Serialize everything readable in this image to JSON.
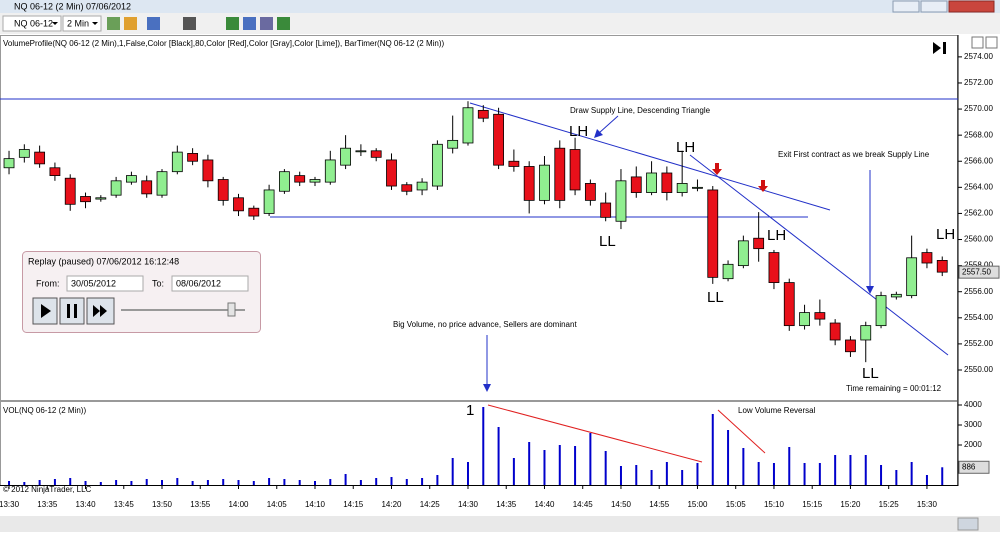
{
  "window": {
    "title": "NQ 06-12 (2 Min)  07/06/2012"
  },
  "toolbar": {
    "instrument": "NQ 06-12",
    "interval": "2 Min"
  },
  "replay": {
    "title": "Replay (paused) 07/06/2012 16:12:48",
    "from_label": "From:",
    "from": "30/05/2012",
    "to_label": "To:",
    "to": "08/06/2012"
  },
  "chart_data": {
    "type": "candlestick",
    "indicator_label": "VolumeProfile(NQ 06-12 (2 Min),1,False,Color [Black],80,Color [Red],Color [Gray],Color [Lime]), BarTimer(NQ 06-12 (2 Min))",
    "open": [
      2565.5,
      2566.3,
      2566.7,
      2565.5,
      2564.7,
      2563.3,
      2563.1,
      2563.4,
      2564.4,
      2564.5,
      2563.4,
      2565.2,
      2566.6,
      2566.1,
      2564.6,
      2563.2,
      2562.4,
      2562.0,
      2563.7,
      2564.9,
      2564.4,
      2564.4,
      2565.7,
      2566.8,
      2566.8,
      2566.1,
      2564.2,
      2563.8,
      2564.1,
      2567.0,
      2567.4,
      2569.9,
      2569.6,
      2566.0,
      2565.6,
      2563.0,
      2567.0,
      2566.9,
      2564.3,
      2562.8,
      2561.4,
      2564.8,
      2563.6,
      2565.1,
      2563.6,
      2564.0,
      2563.8,
      2557.0,
      2558.0,
      2560.1,
      2559.0,
      2556.7,
      2553.4,
      2554.4,
      2553.6,
      2552.3,
      2552.3,
      2553.4,
      2555.6,
      2555.7,
      2559.0,
      2558.4
    ],
    "high": [
      2566.8,
      2567.3,
      2567.2,
      2565.9,
      2565.0,
      2563.6,
      2563.4,
      2564.8,
      2565.2,
      2564.9,
      2565.4,
      2567.2,
      2567.0,
      2566.5,
      2564.8,
      2563.5,
      2562.6,
      2564.2,
      2565.4,
      2565.2,
      2564.8,
      2566.8,
      2568.0,
      2567.3,
      2567.0,
      2566.6,
      2564.4,
      2564.7,
      2567.6,
      2569.5,
      2570.6,
      2570.3,
      2570.1,
      2566.9,
      2566.0,
      2566.4,
      2567.6,
      2567.8,
      2564.6,
      2563.6,
      2565.4,
      2565.6,
      2566.0,
      2565.6,
      2566.8,
      2564.6,
      2564.1,
      2558.4,
      2560.3,
      2562.1,
      2559.2,
      2557.0,
      2555.0,
      2555.4,
      2553.9,
      2552.6,
      2553.7,
      2556.0,
      2556.0,
      2560.3,
      2559.3,
      2558.7
    ],
    "low": [
      2565.0,
      2565.9,
      2565.5,
      2564.5,
      2562.2,
      2562.4,
      2562.9,
      2563.2,
      2564.2,
      2563.2,
      2563.2,
      2565.0,
      2565.7,
      2564.0,
      2562.6,
      2561.8,
      2561.5,
      2561.8,
      2563.5,
      2564.1,
      2564.1,
      2564.2,
      2565.4,
      2566.4,
      2566.0,
      2563.8,
      2563.4,
      2563.4,
      2563.8,
      2566.6,
      2567.2,
      2569.0,
      2565.4,
      2565.2,
      2562.0,
      2562.7,
      2562.4,
      2563.4,
      2562.6,
      2561.4,
      2560.8,
      2563.2,
      2563.4,
      2563.0,
      2563.3,
      2563.7,
      2556.6,
      2556.8,
      2557.8,
      2558.3,
      2556.2,
      2553.0,
      2553.1,
      2553.4,
      2551.9,
      2551.0,
      2550.6,
      2553.2,
      2555.4,
      2555.5,
      2557.8,
      2557.2
    ],
    "close": [
      2566.2,
      2566.9,
      2565.8,
      2564.9,
      2562.7,
      2562.9,
      2563.2,
      2564.5,
      2564.9,
      2563.5,
      2565.2,
      2566.7,
      2566.0,
      2564.5,
      2563.0,
      2562.2,
      2561.8,
      2563.8,
      2565.2,
      2564.4,
      2564.6,
      2566.1,
      2567.0,
      2566.8,
      2566.3,
      2564.1,
      2563.7,
      2564.4,
      2567.3,
      2567.6,
      2570.1,
      2569.3,
      2565.7,
      2565.6,
      2563.0,
      2565.7,
      2563.0,
      2563.8,
      2563.0,
      2561.7,
      2564.5,
      2563.6,
      2565.1,
      2563.6,
      2564.3,
      2564.0,
      2557.1,
      2558.1,
      2559.9,
      2559.3,
      2556.7,
      2553.4,
      2554.4,
      2553.9,
      2552.3,
      2551.4,
      2553.4,
      2555.7,
      2555.8,
      2558.6,
      2558.2,
      2557.5
    ],
    "up_color": "#90ee90",
    "down_color": "#e8101a",
    "ylim": [
      2547.7,
      2575.6
    ],
    "yticks": [
      {
        "value": 2550,
        "label": "2550.00"
      },
      {
        "value": 2552,
        "label": "2552.00"
      },
      {
        "value": 2554,
        "label": "2554.00"
      },
      {
        "value": 2556,
        "label": "2556.00"
      },
      {
        "value": 2558,
        "label": "2558.00"
      },
      {
        "value": 2560,
        "label": "2560.00"
      },
      {
        "value": 2562,
        "label": "2562.00"
      },
      {
        "value": 2564,
        "label": "2564.00"
      },
      {
        "value": 2566,
        "label": "2566.00"
      },
      {
        "value": 2568,
        "label": "2568.00"
      },
      {
        "value": 2570,
        "label": "2570.00"
      },
      {
        "value": 2572,
        "label": "2572.00"
      },
      {
        "value": 2574,
        "label": "2574.00"
      }
    ],
    "grid": false,
    "last_price": {
      "value": 2557.5,
      "label": "2557.50"
    },
    "xlim": [
      -0.59,
      62.03
    ],
    "xticks": [
      {
        "value": 0,
        "label": "13:30"
      },
      {
        "value": 2.5,
        "label": "13:35"
      },
      {
        "value": 5,
        "label": "13:40"
      },
      {
        "value": 7.5,
        "label": "13:45"
      },
      {
        "value": 10,
        "label": "13:50"
      },
      {
        "value": 12.5,
        "label": "13:55"
      },
      {
        "value": 15,
        "label": "14:00"
      },
      {
        "value": 17.5,
        "label": "14:05"
      },
      {
        "value": 20,
        "label": "14:10"
      },
      {
        "value": 22.5,
        "label": "14:15"
      },
      {
        "value": 25,
        "label": "14:20"
      },
      {
        "value": 27.5,
        "label": "14:25"
      },
      {
        "value": 30,
        "label": "14:30"
      },
      {
        "value": 32.5,
        "label": "14:35"
      },
      {
        "value": 35,
        "label": "14:40"
      },
      {
        "value": 37.5,
        "label": "14:45"
      },
      {
        "value": 40,
        "label": "14:50"
      },
      {
        "value": 42.5,
        "label": "14:55"
      },
      {
        "value": 45,
        "label": "15:00"
      },
      {
        "value": 47.5,
        "label": "15:05"
      },
      {
        "value": 50,
        "label": "15:10"
      },
      {
        "value": 52.5,
        "label": "15:15"
      },
      {
        "value": 55,
        "label": "15:20"
      },
      {
        "value": 57.5,
        "label": "15:25"
      },
      {
        "value": 60,
        "label": "15:30"
      }
    ],
    "annotations": [
      "Draw Supply Line, Descending Triangle",
      "LH",
      "LH",
      "LH",
      "LH",
      "LL",
      "LL",
      "LL",
      "Exit First contract as we break Supply Line",
      "Big Volume, no price advance, Sellers are dominant",
      "Time remaining = 00:01:12"
    ],
    "volume": {
      "label": "VOL(NQ 06-12 (2 Min))",
      "values": [
        200,
        150,
        250,
        300,
        350,
        200,
        150,
        250,
        200,
        300,
        250,
        350,
        200,
        250,
        300,
        250,
        200,
        350,
        300,
        250,
        200,
        300,
        550,
        250,
        350,
        400,
        300,
        350,
        500,
        1350,
        1150,
        3900,
        2900,
        1350,
        2150,
        1750,
        2000,
        1950,
        2600,
        1700,
        950,
        1000,
        750,
        1150,
        750,
        1100,
        3550,
        2750,
        1850,
        1150,
        1100,
        1900,
        1100,
        1100,
        1500,
        1500,
        1500,
        1000,
        750,
        1150,
        500,
        886
      ],
      "color": "#0000cc",
      "ylim": [
        0,
        4200
      ],
      "yticks": [
        1000,
        2000,
        3000,
        4000
      ],
      "last": 886,
      "annotations": [
        "1",
        "Low Volume Reversal"
      ]
    },
    "copyright": "© 2012 NinjaTrader, LLC"
  }
}
